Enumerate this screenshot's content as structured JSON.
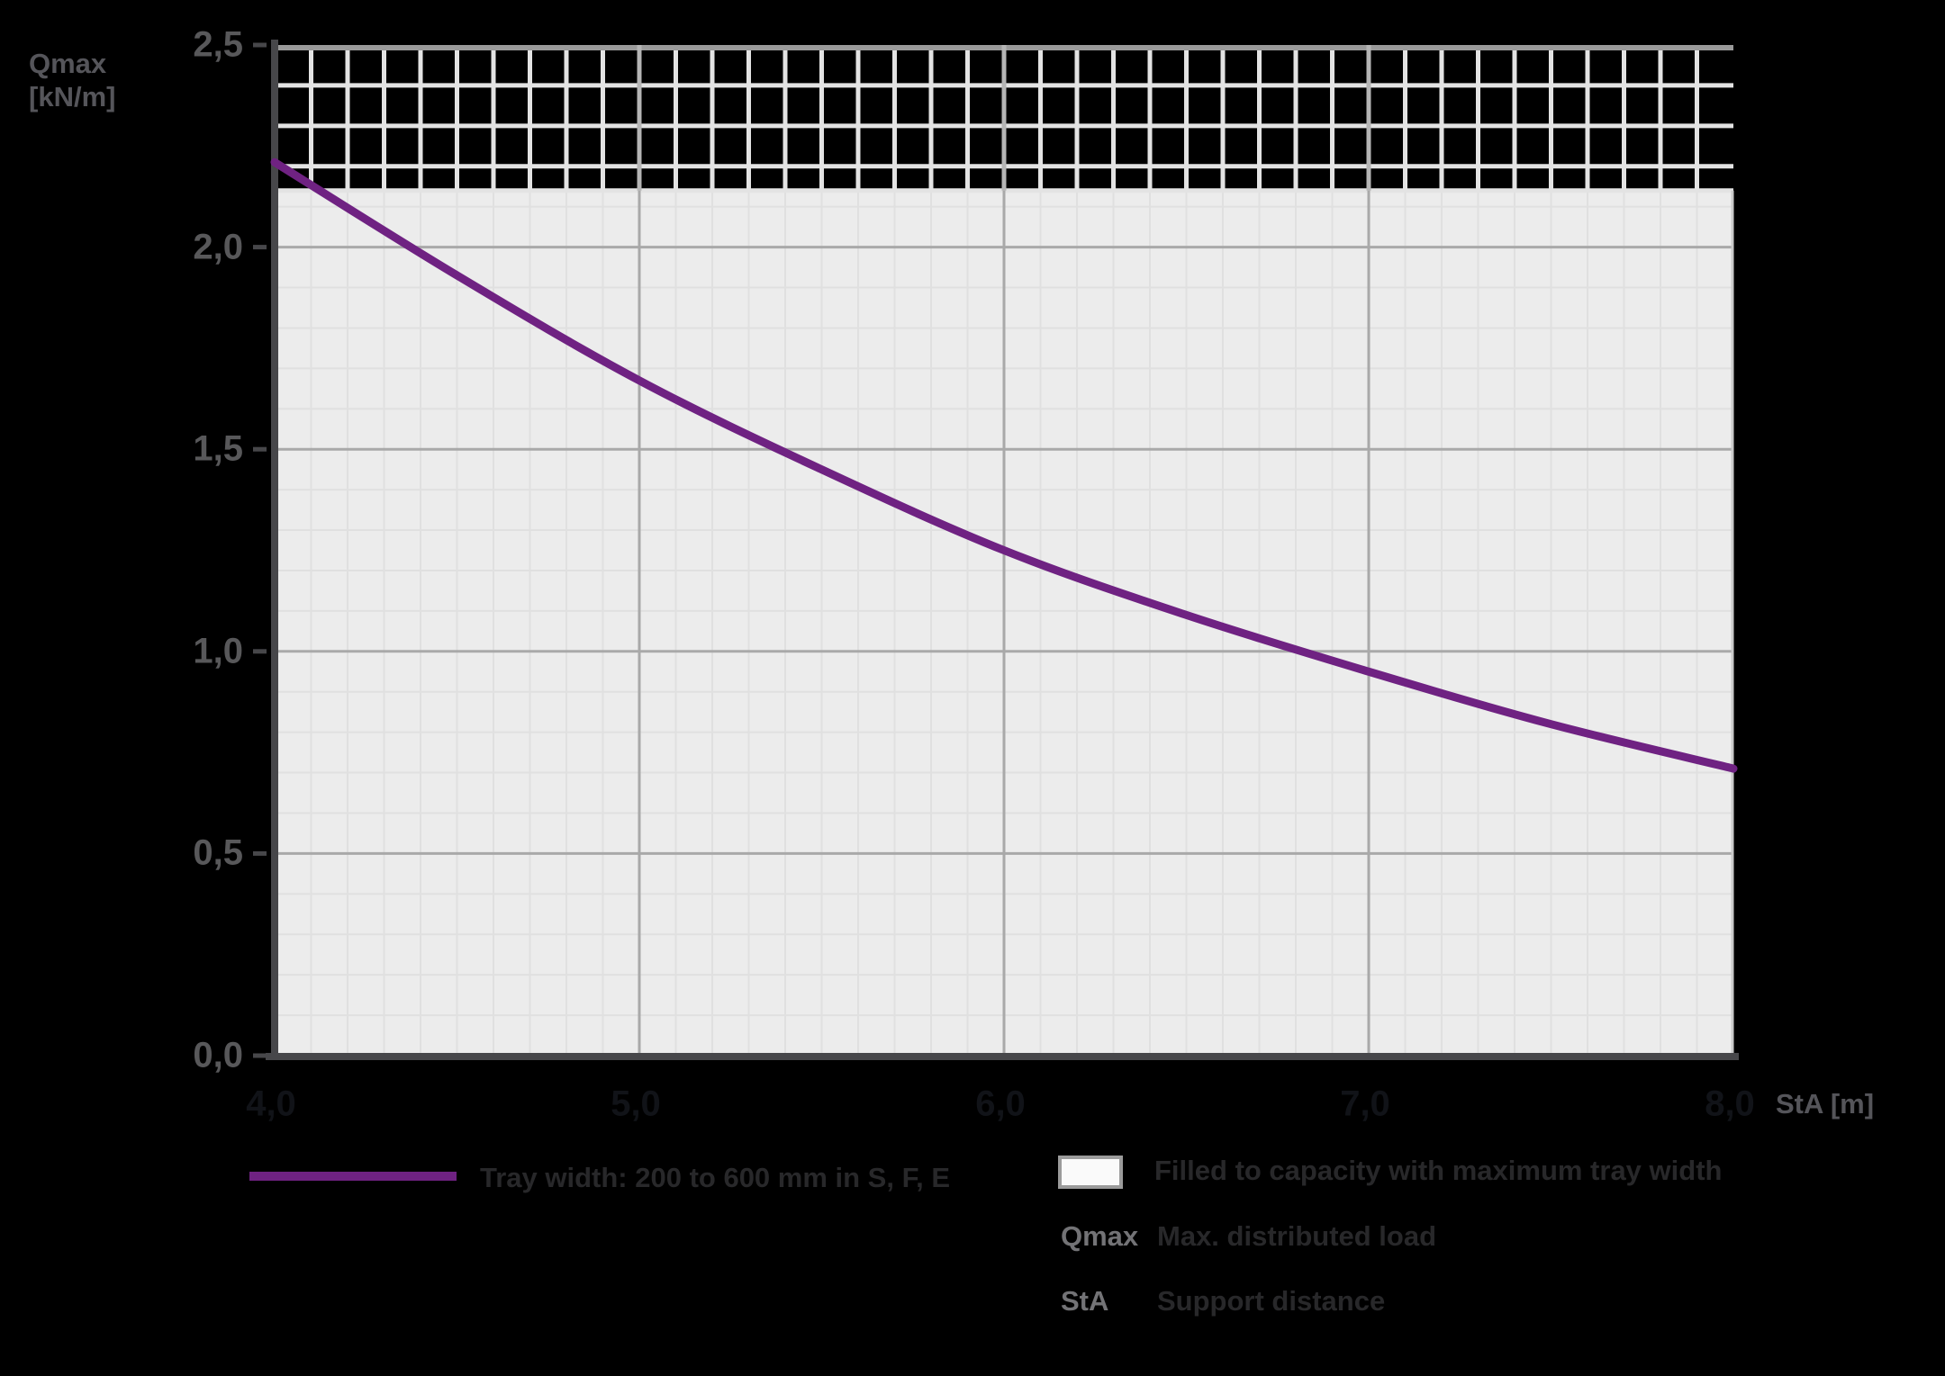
{
  "axis": {
    "y_title": "Qmax\n[kN/m]",
    "x_title": "StA [m]"
  },
  "chart_data": {
    "type": "line",
    "title": "",
    "xlabel": "StA [m]",
    "ylabel": "Qmax [kN/m]",
    "xlim": [
      4.0,
      8.0
    ],
    "ylim": [
      0.0,
      2.5
    ],
    "grid": "on",
    "minor_step_x": 0.1,
    "minor_step_y": 0.1,
    "x_ticks": {
      "values": [
        4.0,
        5.0,
        6.0,
        7.0,
        8.0
      ],
      "labels": [
        "4,0",
        "5,0",
        "6,0",
        "7,0",
        "8,0"
      ]
    },
    "y_ticks": {
      "values": [
        0.0,
        0.5,
        1.0,
        1.5,
        2.0,
        2.5
      ],
      "labels": [
        "0,0",
        "0,5",
        "1,0",
        "1,5",
        "2,0",
        "2,5"
      ]
    },
    "x": [
      4.0,
      4.5,
      5.0,
      5.5,
      6.0,
      6.5,
      7.0,
      7.5,
      8.0
    ],
    "series": [
      {
        "name": "Tray width: 200 to 600 mm in S, F, E",
        "values": [
          2.21,
          1.93,
          1.67,
          1.45,
          1.25,
          1.09,
          0.95,
          0.82,
          0.71
        ],
        "color": "#6f2282"
      }
    ],
    "capacity_band": {
      "from": 2.14,
      "to": 2.5,
      "label": "Filled to capacity with maximum tray width"
    },
    "legend_position": "bottom"
  },
  "legend": {
    "series_label": "Tray width: 200 to 600 mm in S, F, E",
    "band_label": "Filled to capacity with maximum tray width",
    "defs": [
      {
        "key": "Qmax",
        "label": "Max. distributed load"
      },
      {
        "key": "StA",
        "label": "Support distance"
      }
    ]
  },
  "colors": {
    "series": "#6f2282",
    "plot_background": "#ececec",
    "minor_grid": "#e0e0e0",
    "band_grid": "#e3e3e3",
    "major_grid": "#a9a9a9",
    "band_major_grid": "#b5b5b5",
    "band_top_border": "#9a9a9a",
    "axis": "#47474a",
    "band_swatch_fill": "#fafafa",
    "y_label_color": "#58585a",
    "x_label_color": "#111318"
  }
}
